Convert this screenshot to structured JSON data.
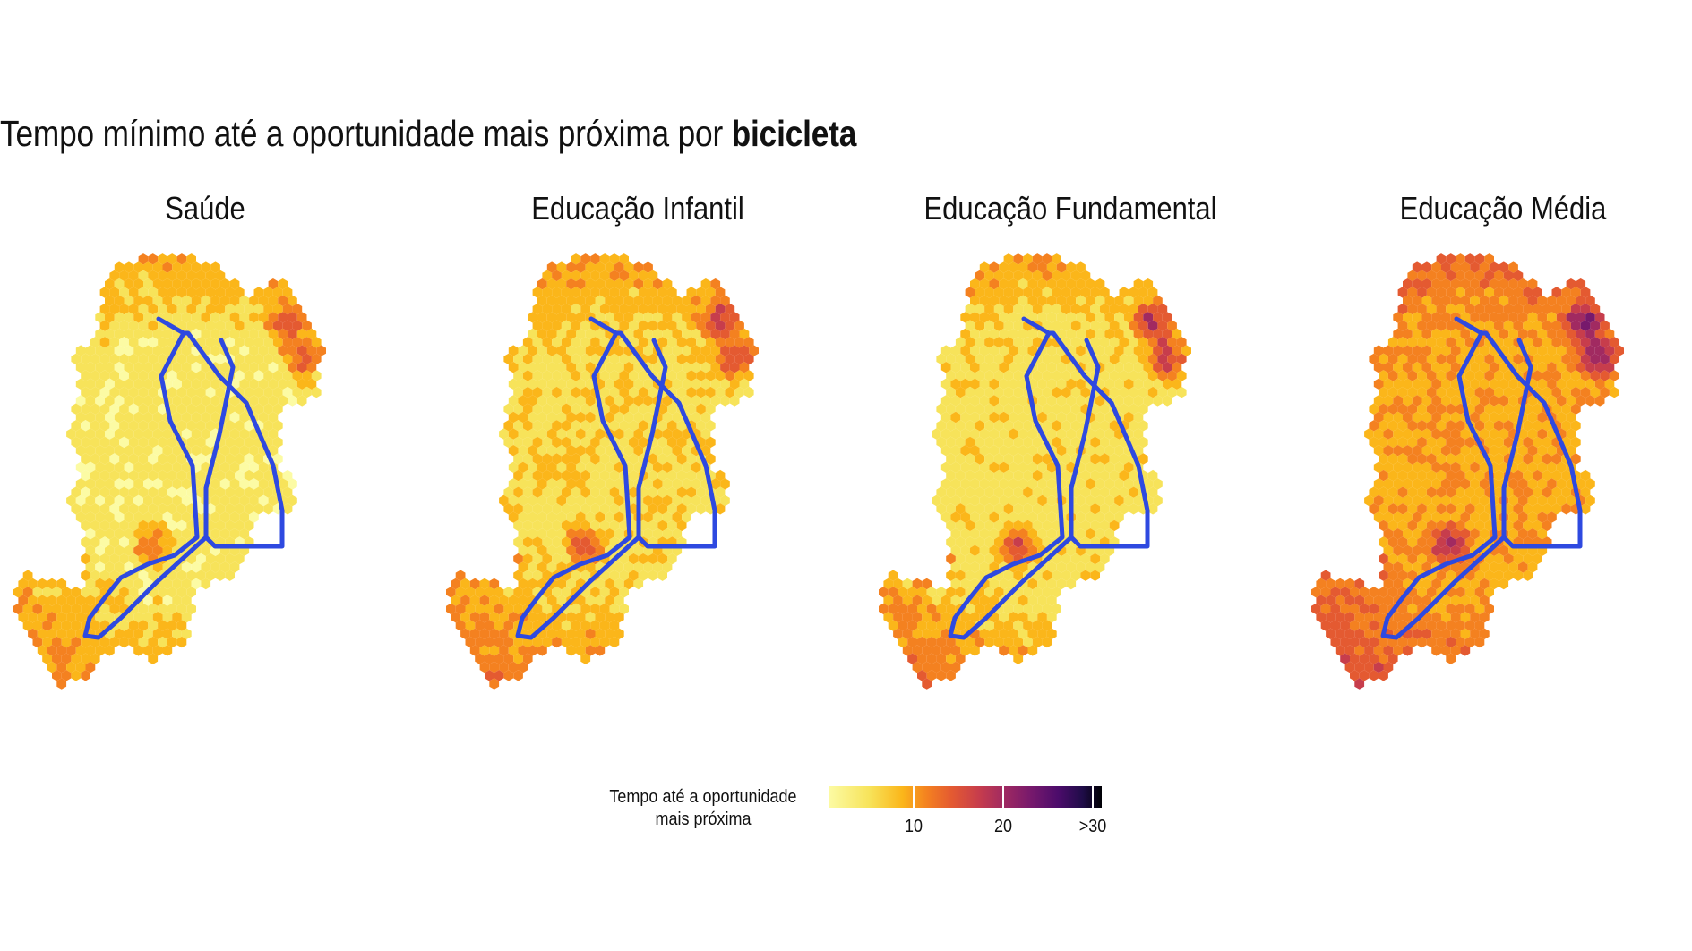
{
  "title": {
    "prefix": "Tempo mínimo até a oportunidade mais próxima por ",
    "bold": "bicicleta"
  },
  "panels": [
    {
      "title": "Saúde"
    },
    {
      "title": "Educação Infantil"
    },
    {
      "title": "Educação Fundamental"
    },
    {
      "title": "Educação Média"
    }
  ],
  "legend": {
    "title_line1": "Tempo até a oportunidade",
    "title_line2": "mais próxima",
    "ticks": [
      "10",
      "20",
      ">30"
    ],
    "scale_min": 0,
    "scale_max": 30,
    "palette": [
      "#fcfba4",
      "#f7e35a",
      "#fbb61a",
      "#f48120",
      "#e45a31",
      "#c73d4c",
      "#a12a61",
      "#77196c",
      "#4c0c6b",
      "#1f0c48",
      "#000004"
    ]
  },
  "colors": {
    "route": "#2e49e0",
    "background": "#ffffff"
  }
}
